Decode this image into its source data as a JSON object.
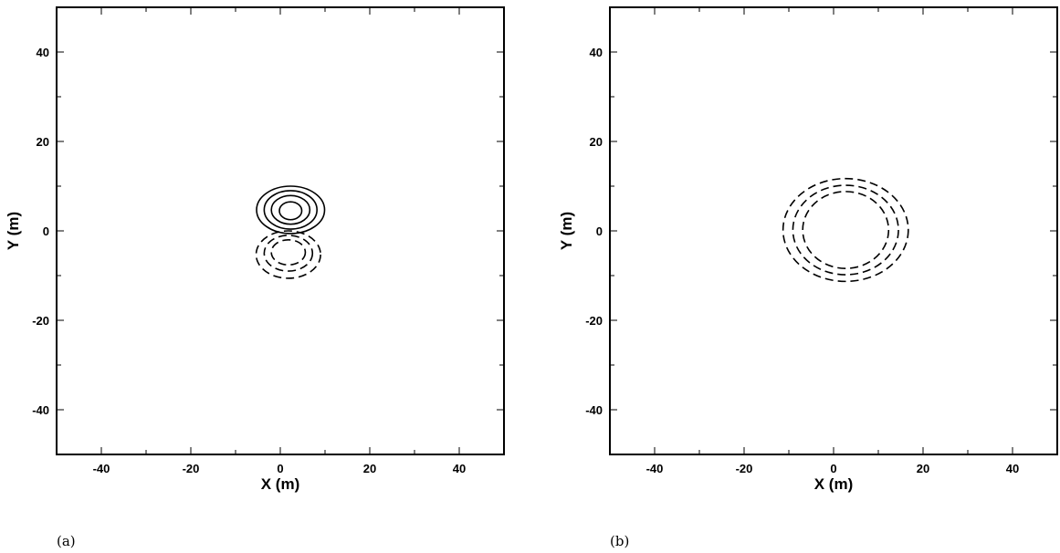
{
  "chart_data": [
    {
      "type": "contour",
      "panel_label": "(a)",
      "xlabel": "X (m)",
      "ylabel": "Y (m)",
      "xlim": [
        -50,
        50
      ],
      "ylim": [
        -50,
        50
      ],
      "x_tick_labels": [
        "-40",
        "-20",
        "0",
        "20",
        "40"
      ],
      "y_tick_labels": [
        "40",
        "20",
        "0",
        "-20",
        "-40"
      ],
      "x_ticks": [
        -40,
        -20,
        0,
        20,
        40
      ],
      "y_ticks": [
        40,
        20,
        0,
        -20,
        -40
      ],
      "minor_ticks": [
        -50,
        -30,
        -10,
        10,
        30,
        50
      ],
      "grid": false,
      "contours": [
        {
          "style": "solid",
          "cx": 2.3,
          "cy": 4.7,
          "rx": 7.6,
          "ry": 5.3
        },
        {
          "style": "solid",
          "cx": 2.3,
          "cy": 4.7,
          "rx": 5.9,
          "ry": 4.3
        },
        {
          "style": "solid",
          "cx": 2.3,
          "cy": 4.7,
          "rx": 4.3,
          "ry": 3.2
        },
        {
          "style": "solid",
          "cx": 2.3,
          "cy": 4.5,
          "rx": 2.5,
          "ry": 2.0
        },
        {
          "style": "dashed",
          "cx": 1.8,
          "cy": -5.3,
          "rx": 7.2,
          "ry": 5.3
        },
        {
          "style": "dashed",
          "cx": 1.8,
          "cy": -5.0,
          "rx": 5.4,
          "ry": 4.0
        },
        {
          "style": "dashed",
          "cx": 1.8,
          "cy": -4.8,
          "rx": 3.8,
          "ry": 2.8
        }
      ]
    },
    {
      "type": "contour",
      "panel_label": "(b)",
      "xlabel": "X (m)",
      "ylabel": "Y (m)",
      "xlim": [
        -50,
        50
      ],
      "ylim": [
        -50,
        50
      ],
      "x_tick_labels": [
        "-40",
        "-20",
        "0",
        "20",
        "40"
      ],
      "y_tick_labels": [
        "40",
        "20",
        "0",
        "-20",
        "-40"
      ],
      "x_ticks": [
        -40,
        -20,
        0,
        20,
        40
      ],
      "y_ticks": [
        40,
        20,
        0,
        -20,
        -40
      ],
      "minor_ticks": [
        -50,
        -30,
        -10,
        10,
        30,
        50
      ],
      "grid": false,
      "contours": [
        {
          "style": "dashed",
          "cx": 2.7,
          "cy": 0.2,
          "rx": 14.0,
          "ry": 11.5
        },
        {
          "style": "dashed",
          "cx": 2.7,
          "cy": 0.2,
          "rx": 11.8,
          "ry": 10.0
        },
        {
          "style": "dashed",
          "cx": 2.7,
          "cy": 0.2,
          "rx": 9.6,
          "ry": 8.6
        }
      ]
    }
  ]
}
